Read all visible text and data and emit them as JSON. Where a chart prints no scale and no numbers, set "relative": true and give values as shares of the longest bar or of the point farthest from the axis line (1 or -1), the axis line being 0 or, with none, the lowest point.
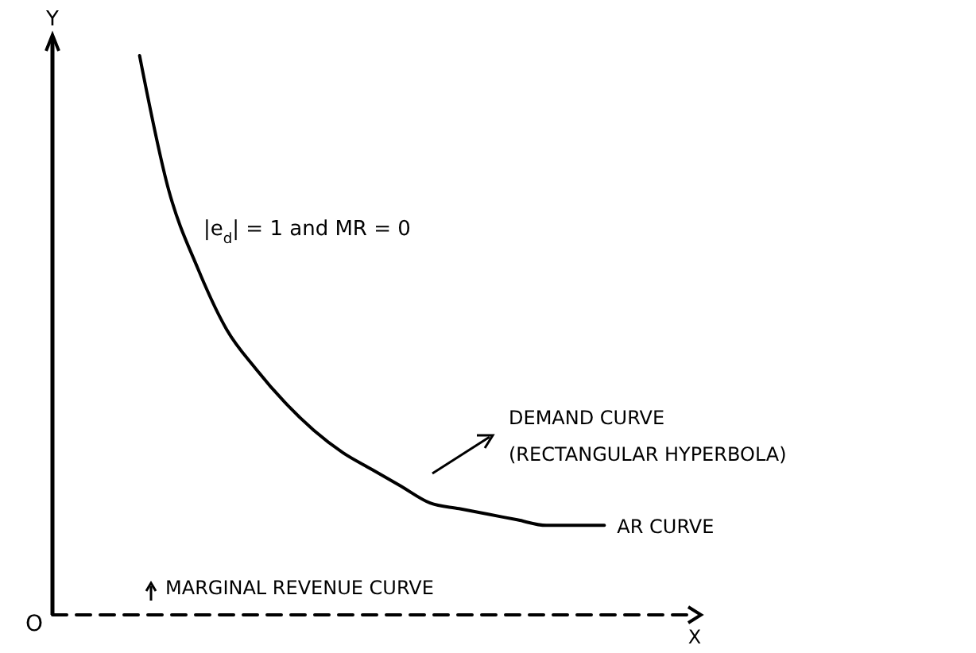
{
  "chart_data": {
    "type": "line",
    "relative": true,
    "xlabel": "X",
    "ylabel": "Y",
    "categories": [
      null,
      null,
      null,
      null,
      null,
      null,
      null,
      null,
      null,
      null,
      null,
      null,
      null,
      null,
      null,
      null,
      null,
      null,
      null,
      null,
      null,
      null,
      null
    ],
    "series": [
      {
        "name": "AR CURVE",
        "color": "#000000",
        "line_style": "solid",
        "values": [
          null,
          null,
          null,
          1,
          0.76,
          0.62,
          0.51,
          0.44,
          0.38,
          0.33,
          0.29,
          0.26,
          0.23,
          0.2,
          0.19,
          0.18,
          0.17,
          0.16,
          0.16,
          0.16,
          null,
          null,
          null
        ]
      },
      {
        "name": "MARGINAL REVENUE CURVE",
        "color": "#000000",
        "line_style": "dashed",
        "values": [
          0,
          0,
          0,
          0,
          0,
          0,
          0,
          0,
          0,
          0,
          0,
          0,
          0,
          0,
          0,
          0,
          0,
          0,
          0,
          0,
          0,
          0,
          0
        ]
      }
    ],
    "annotations": [
      "|e$_{d}$| = 1 and MR = 0",
      "DEMAND CURVE",
      "(RECTANGULAR HYPERBOLA)",
      "O"
    ],
    "legend": "bottom left",
    "marker": "none"
  }
}
